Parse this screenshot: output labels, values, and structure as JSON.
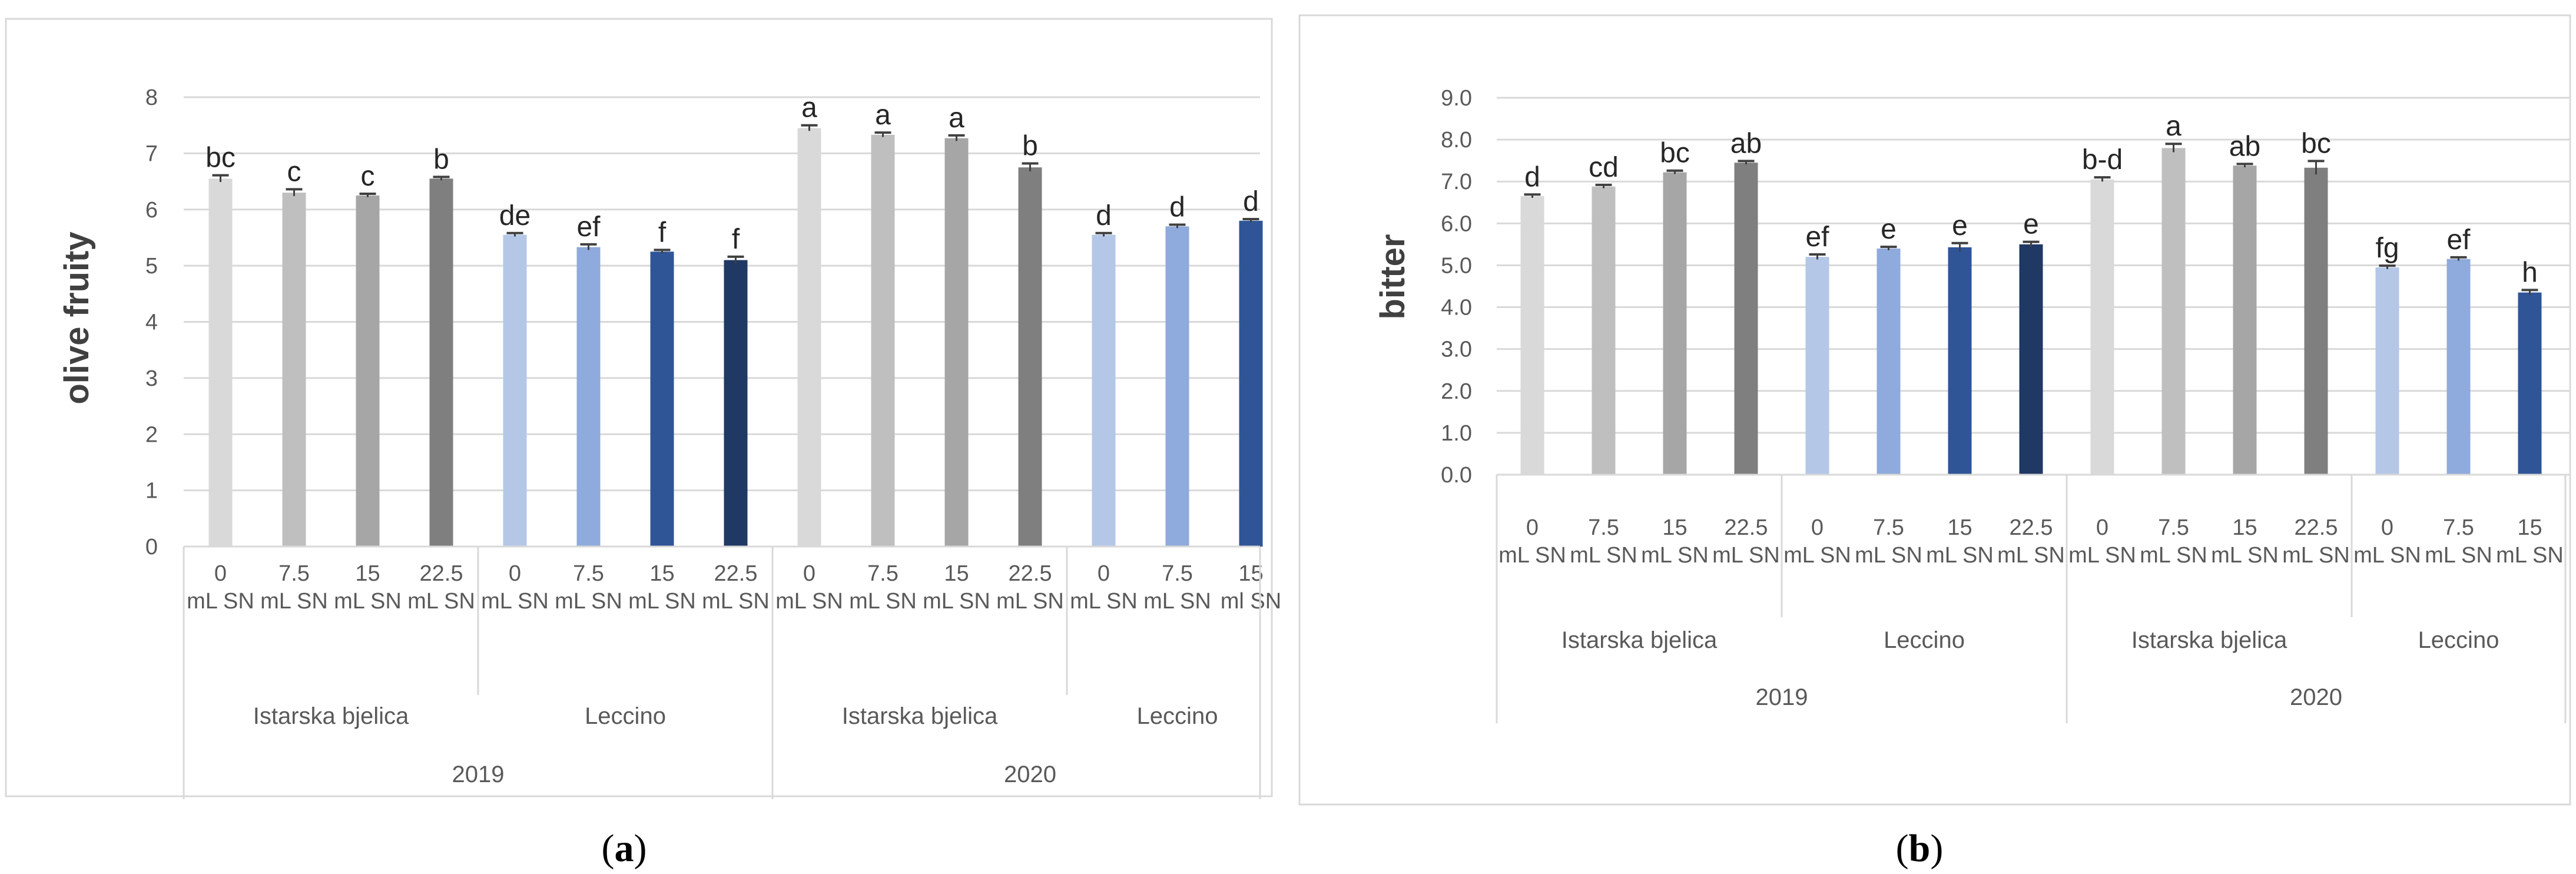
{
  "chart_data": [
    {
      "panel": "a",
      "type": "bar",
      "ylabel": "olive fruity",
      "ylim": [
        0,
        8
      ],
      "yticks": [
        "0",
        "1",
        "2",
        "3",
        "4",
        "5",
        "6",
        "7",
        "8"
      ],
      "gridlines": true,
      "groups": [
        {
          "year": "2019",
          "cultivars": [
            {
              "name": "Istarska bjelica",
              "categories": [
                "0 mL SN",
                "7.5 mL SN",
                "15 mL SN",
                "22.5 mL SN"
              ],
              "values": [
                6.55,
                6.3,
                6.25,
                6.55
              ],
              "errors": [
                0.06,
                0.06,
                0.03,
                0.03
              ],
              "letters": [
                "bc",
                "c",
                "c",
                "b"
              ],
              "colors": [
                "#d9d9d9",
                "#bfbfbf",
                "#a6a6a6",
                "#7f7f7f"
              ]
            },
            {
              "name": "Leccino",
              "categories": [
                "0 mL SN",
                "7.5 mL SN",
                "15 mL SN",
                "22.5 mL SN"
              ],
              "values": [
                5.55,
                5.33,
                5.25,
                5.1
              ],
              "errors": [
                0.03,
                0.05,
                0.03,
                0.06
              ],
              "letters": [
                "de",
                "ef",
                "f",
                "f"
              ],
              "colors": [
                "#b4c7e7",
                "#8faadc",
                "#2f5597",
                "#203864"
              ]
            }
          ]
        },
        {
          "year": "2020",
          "cultivars": [
            {
              "name": "Istarska bjelica",
              "categories": [
                "0 mL SN",
                "7.5 mL SN",
                "15 mL SN",
                "22.5 mL SN"
              ],
              "values": [
                7.45,
                7.33,
                7.27,
                6.75
              ],
              "errors": [
                0.05,
                0.04,
                0.05,
                0.07
              ],
              "letters": [
                "a",
                "a",
                "a",
                "b"
              ],
              "colors": [
                "#d9d9d9",
                "#bfbfbf",
                "#a6a6a6",
                "#7f7f7f"
              ]
            },
            {
              "name": "Leccino",
              "categories": [
                "0 mL SN",
                "7.5 mL SN",
                "15 ml SN"
              ],
              "values": [
                5.55,
                5.7,
                5.8
              ],
              "errors": [
                0.03,
                0.03,
                0.03
              ],
              "letters": [
                "d",
                "d",
                "d"
              ],
              "colors": [
                "#b4c7e7",
                "#8faadc",
                "#2f5597"
              ]
            }
          ]
        }
      ]
    },
    {
      "panel": "b",
      "type": "bar",
      "ylabel": "bitter",
      "ylim": [
        0,
        9
      ],
      "yticks": [
        "0.0",
        "1.0",
        "2.0",
        "3.0",
        "4.0",
        "5.0",
        "6.0",
        "7.0",
        "8.0",
        "9.0"
      ],
      "gridlines": true,
      "groups": [
        {
          "year": "2019",
          "cultivars": [
            {
              "name": "Istarska bjelica",
              "categories": [
                "0 mL SN",
                "7.5 mL SN",
                "15 mL SN",
                "22.5 mL SN"
              ],
              "values": [
                6.65,
                6.88,
                7.22,
                7.45
              ],
              "errors": [
                0.04,
                0.04,
                0.04,
                0.04
              ],
              "letters": [
                "d",
                "cd",
                "bc",
                "ab"
              ],
              "colors": [
                "#d9d9d9",
                "#bfbfbf",
                "#a6a6a6",
                "#7f7f7f"
              ]
            },
            {
              "name": "Leccino",
              "categories": [
                "0 mL SN",
                "7.5 mL SN",
                "15 mL SN",
                "22.5 mL SN"
              ],
              "values": [
                5.2,
                5.4,
                5.43,
                5.5
              ],
              "errors": [
                0.06,
                0.04,
                0.1,
                0.06
              ],
              "letters": [
                "ef",
                "e",
                "e",
                "e"
              ],
              "colors": [
                "#b4c7e7",
                "#8faadc",
                "#2f5597",
                "#203864"
              ]
            }
          ]
        },
        {
          "year": "2020",
          "cultivars": [
            {
              "name": "Istarska bjelica",
              "categories": [
                "0 mL SN",
                "7.5 mL SN",
                "15 mL SN",
                "22.5 mL SN"
              ],
              "values": [
                7.05,
                7.8,
                7.38,
                7.33
              ],
              "errors": [
                0.05,
                0.1,
                0.04,
                0.16
              ],
              "letters": [
                "b-d",
                "a",
                "ab",
                "bc"
              ],
              "colors": [
                "#d9d9d9",
                "#bfbfbf",
                "#a6a6a6",
                "#7f7f7f"
              ]
            },
            {
              "name": "Leccino",
              "categories": [
                "0 mL SN",
                "7.5 mL SN",
                "15 mL SN"
              ],
              "values": [
                4.95,
                5.15,
                4.35
              ],
              "errors": [
                0.04,
                0.04,
                0.06
              ],
              "letters": [
                "fg",
                "ef",
                "h"
              ],
              "colors": [
                "#b4c7e7",
                "#8faadc",
                "#2f5597"
              ]
            }
          ]
        }
      ]
    }
  ]
}
